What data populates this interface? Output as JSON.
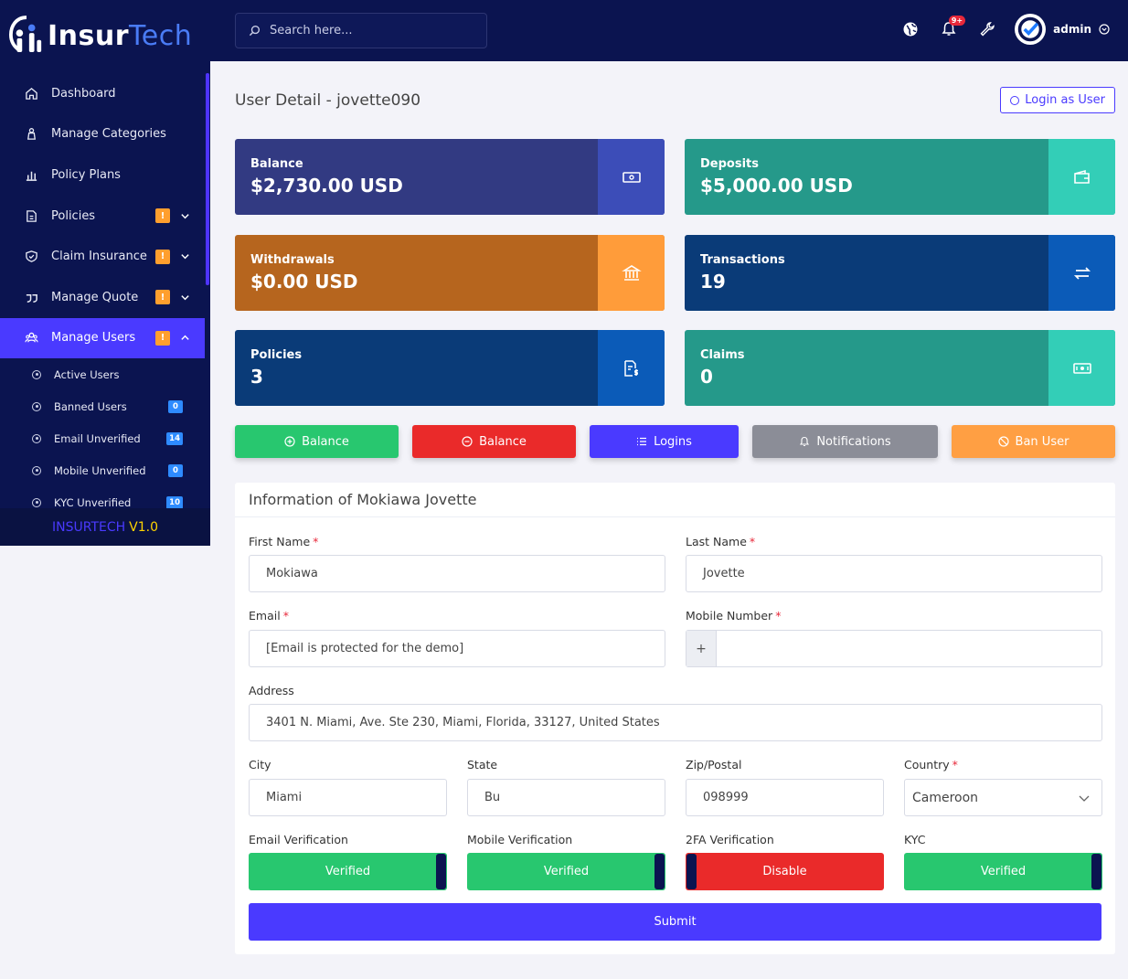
{
  "brand": {
    "name_a": "Insur",
    "name_b": "Tech"
  },
  "sidebar": {
    "items": [
      {
        "label": "Dashboard",
        "icon": "home-icon"
      },
      {
        "label": "Manage Categories",
        "icon": "categories-icon"
      },
      {
        "label": "Policy Plans",
        "icon": "chart-icon"
      },
      {
        "label": "Policies",
        "icon": "document-icon",
        "warn": "!"
      },
      {
        "label": "Claim Insurance",
        "icon": "shield-icon",
        "warn": "!"
      },
      {
        "label": "Manage Quote",
        "icon": "quote-icon",
        "warn": "!"
      },
      {
        "label": "Manage Users",
        "icon": "users-icon",
        "warn": "!"
      }
    ],
    "sub_items": [
      {
        "label": "Active Users",
        "count": ""
      },
      {
        "label": "Banned Users",
        "count": "0"
      },
      {
        "label": "Email Unverified",
        "count": "14"
      },
      {
        "label": "Mobile Unverified",
        "count": "0"
      },
      {
        "label": "KYC Unverified",
        "count": "10"
      }
    ],
    "version_a": "INSURTECH",
    "version_b": "V1.0"
  },
  "topbar": {
    "search_placeholder": "Search here...",
    "notif_count": "9+",
    "admin_name": "admin"
  },
  "page": {
    "title": "User Detail - jovette090",
    "login_as_user": "Login as User"
  },
  "stats": [
    {
      "label": "Balance",
      "value": "$2,730.00 USD"
    },
    {
      "label": "Deposits",
      "value": "$5,000.00 USD"
    },
    {
      "label": "Withdrawals",
      "value": "$0.00 USD"
    },
    {
      "label": "Transactions",
      "value": "19"
    },
    {
      "label": "Policies",
      "value": "3"
    },
    {
      "label": "Claims",
      "value": "0"
    }
  ],
  "actions": {
    "add_balance": "Balance",
    "sub_balance": "Balance",
    "logins": "Logins",
    "notifications": "Notifications",
    "ban_user": "Ban User"
  },
  "form": {
    "heading": "Information of Mokiawa Jovette",
    "first_name_label": "First Name",
    "first_name": "Mokiawa",
    "last_name_label": "Last Name",
    "last_name": "Jovette",
    "email_label": "Email",
    "email": "[Email is protected for the demo]",
    "mobile_label": "Mobile Number",
    "mobile_prefix": "+",
    "mobile": "",
    "address_label": "Address",
    "address": "3401 N. Miami, Ave. Ste 230, Miami, Florida, 33127, United States",
    "city_label": "City",
    "city": "Miami",
    "state_label": "State",
    "state": "Bu",
    "zip_label": "Zip/Postal",
    "zip": "098999",
    "country_label": "Country",
    "country": "Cameroon",
    "email_verification_label": "Email Verification",
    "email_verification": "Verified",
    "mobile_verification_label": "Mobile Verification",
    "mobile_verification": "Verified",
    "twofa_label": "2FA Verification",
    "twofa": "Disable",
    "kyc_label": "KYC",
    "kyc": "Verified",
    "submit": "Submit"
  },
  "colors": {
    "sidebar_bg": "#0b1450",
    "primary": "#4a3aff",
    "success": "#28c76f",
    "danger": "#ea2a2a",
    "warning": "#ff9f43"
  }
}
